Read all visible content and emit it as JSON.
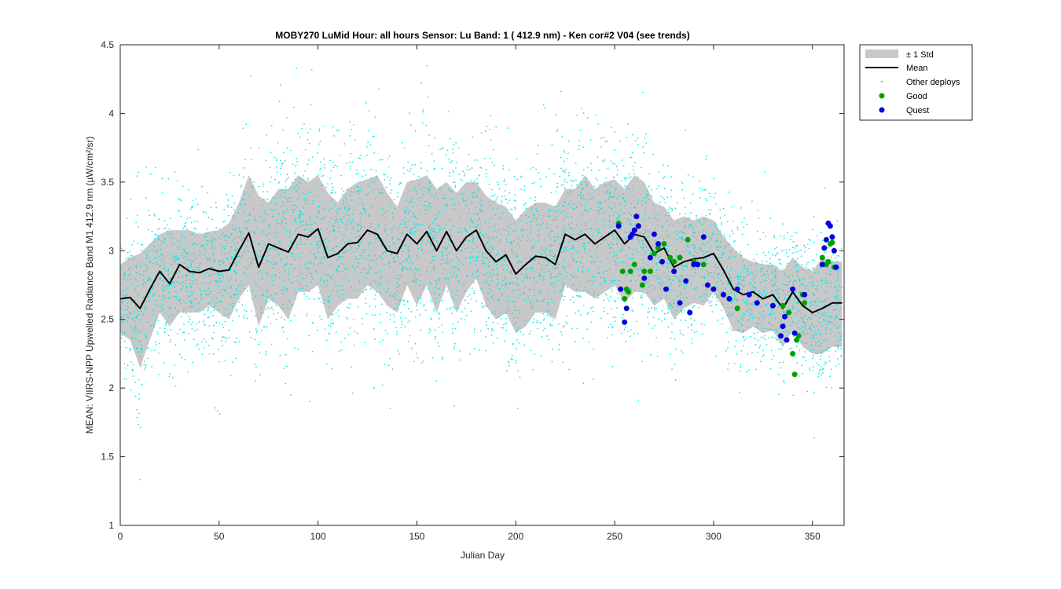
{
  "chart_data": {
    "type": "scatter",
    "title": "MOBY270   LuMid  Hour: all hours  Sensor: Lu Band: 1 ( 412.9 nm)  - Ken cor#2 V04 (see trends)",
    "xlabel": "Julian Day",
    "ylabel": "MEAN: VIIRS-NPP Upwelled Radiance Band M1 412.9 nm (µW/cm²/sr)",
    "xlim": [
      0,
      366
    ],
    "ylim": [
      1,
      4.5
    ],
    "xticks": [
      0,
      50,
      100,
      150,
      200,
      250,
      300,
      350
    ],
    "yticks": [
      1,
      1.5,
      2,
      2.5,
      3,
      3.5,
      4,
      4.5
    ],
    "xtick_labels": [
      "0",
      "50",
      "100",
      "150",
      "200",
      "250",
      "300",
      "350"
    ],
    "ytick_labels": [
      "1",
      "1.5",
      "2",
      "2.5",
      "3",
      "3.5",
      "4",
      "4.5"
    ],
    "grid": false,
    "legend_position": "outside top-right",
    "legend": [
      {
        "label": "± 1 Std",
        "kind": "band",
        "color": "#c8c8c8"
      },
      {
        "label": "Mean",
        "kind": "line",
        "color": "#000000"
      },
      {
        "label": "Other deploys",
        "kind": "dots",
        "color": "#00e5e5"
      },
      {
        "label": "Good",
        "kind": "marker",
        "color": "#00a000"
      },
      {
        "label": "Quest",
        "kind": "marker",
        "color": "#0000e0"
      }
    ],
    "series": [
      {
        "name": "Mean",
        "x": [
          0,
          5,
          10,
          15,
          20,
          25,
          30,
          35,
          40,
          45,
          50,
          55,
          60,
          65,
          70,
          75,
          80,
          85,
          90,
          95,
          100,
          105,
          110,
          115,
          120,
          125,
          130,
          135,
          140,
          145,
          150,
          155,
          160,
          165,
          170,
          175,
          180,
          185,
          190,
          195,
          200,
          205,
          210,
          215,
          220,
          225,
          230,
          235,
          240,
          245,
          250,
          255,
          260,
          265,
          270,
          275,
          280,
          285,
          290,
          295,
          300,
          305,
          310,
          315,
          320,
          325,
          330,
          335,
          340,
          345,
          350,
          355,
          360,
          365
        ],
        "y": [
          2.65,
          2.66,
          2.58,
          2.72,
          2.85,
          2.76,
          2.9,
          2.85,
          2.84,
          2.87,
          2.85,
          2.86,
          3.0,
          3.13,
          2.88,
          3.05,
          3.02,
          2.99,
          3.12,
          3.1,
          3.16,
          2.95,
          2.98,
          3.05,
          3.06,
          3.15,
          3.12,
          3.0,
          2.98,
          3.12,
          3.05,
          3.14,
          3.0,
          3.14,
          3.0,
          3.1,
          3.15,
          3.0,
          2.92,
          2.97,
          2.83,
          2.9,
          2.96,
          2.95,
          2.9,
          3.12,
          3.08,
          3.12,
          3.05,
          3.1,
          3.15,
          3.05,
          3.12,
          3.1,
          2.98,
          3.02,
          2.88,
          2.92,
          2.94,
          2.95,
          2.98,
          2.86,
          2.72,
          2.68,
          2.7,
          2.65,
          2.68,
          2.58,
          2.7,
          2.6,
          2.55,
          2.58,
          2.62,
          2.62
        ]
      },
      {
        "name": "± 1 Std",
        "x": [
          0,
          5,
          10,
          15,
          20,
          25,
          30,
          35,
          40,
          45,
          50,
          55,
          60,
          65,
          70,
          75,
          80,
          85,
          90,
          95,
          100,
          105,
          110,
          115,
          120,
          125,
          130,
          135,
          140,
          145,
          150,
          155,
          160,
          165,
          170,
          175,
          180,
          185,
          190,
          195,
          200,
          205,
          210,
          215,
          220,
          225,
          230,
          235,
          240,
          245,
          250,
          255,
          260,
          265,
          270,
          275,
          280,
          285,
          290,
          295,
          300,
          305,
          310,
          315,
          320,
          325,
          330,
          335,
          340,
          345,
          350,
          355,
          360,
          365
        ],
        "upper": [
          2.9,
          2.95,
          2.98,
          3.05,
          3.12,
          3.15,
          3.15,
          3.15,
          3.12,
          3.14,
          3.15,
          3.2,
          3.35,
          3.55,
          3.4,
          3.35,
          3.45,
          3.45,
          3.55,
          3.5,
          3.55,
          3.42,
          3.35,
          3.45,
          3.5,
          3.52,
          3.55,
          3.42,
          3.32,
          3.5,
          3.52,
          3.55,
          3.45,
          3.5,
          3.42,
          3.5,
          3.5,
          3.4,
          3.35,
          3.32,
          3.22,
          3.3,
          3.35,
          3.35,
          3.32,
          3.45,
          3.45,
          3.55,
          3.45,
          3.5,
          3.52,
          3.45,
          3.55,
          3.5,
          3.35,
          3.32,
          3.22,
          3.25,
          3.22,
          3.25,
          3.22,
          3.1,
          3.02,
          2.95,
          2.92,
          2.9,
          2.9,
          2.85,
          2.95,
          2.88,
          2.85,
          2.95,
          2.92,
          2.92
        ],
        "lower": [
          2.4,
          2.35,
          2.15,
          2.35,
          2.55,
          2.45,
          2.55,
          2.55,
          2.55,
          2.6,
          2.55,
          2.5,
          2.65,
          2.75,
          2.45,
          2.65,
          2.6,
          2.5,
          2.7,
          2.7,
          2.75,
          2.5,
          2.6,
          2.65,
          2.65,
          2.75,
          2.7,
          2.6,
          2.55,
          2.75,
          2.6,
          2.75,
          2.55,
          2.75,
          2.55,
          2.7,
          2.8,
          2.6,
          2.5,
          2.55,
          2.4,
          2.45,
          2.55,
          2.55,
          2.5,
          2.75,
          2.7,
          2.7,
          2.65,
          2.7,
          2.75,
          2.62,
          2.7,
          2.7,
          2.6,
          2.65,
          2.5,
          2.58,
          2.62,
          2.6,
          2.7,
          2.58,
          2.42,
          2.4,
          2.45,
          2.4,
          2.42,
          2.3,
          2.42,
          2.3,
          2.25,
          2.25,
          2.3,
          2.3
        ]
      },
      {
        "name": "Good",
        "x": [
          252,
          254,
          255,
          256,
          257,
          258,
          260,
          262,
          264,
          265,
          268,
          270,
          272,
          275,
          278,
          280,
          283,
          287,
          290,
          295,
          312,
          335,
          338,
          340,
          341,
          342,
          343,
          345,
          346,
          355,
          356,
          357,
          358,
          359,
          360,
          361
        ],
        "y": [
          3.2,
          2.85,
          2.65,
          2.72,
          2.7,
          2.85,
          2.9,
          3.18,
          2.75,
          2.85,
          2.85,
          2.98,
          3.02,
          3.05,
          2.95,
          2.92,
          2.95,
          3.08,
          2.92,
          2.9,
          2.58,
          2.6,
          2.55,
          2.25,
          2.1,
          2.35,
          2.38,
          2.68,
          2.62,
          2.95,
          3.02,
          2.9,
          2.92,
          3.05,
          3.06,
          2.88
        ]
      },
      {
        "name": "Quest",
        "x": [
          252,
          253,
          255,
          256,
          258,
          259,
          260,
          261,
          262,
          265,
          268,
          270,
          272,
          274,
          276,
          280,
          283,
          286,
          288,
          290,
          292,
          295,
          297,
          300,
          305,
          308,
          312,
          318,
          322,
          330,
          334,
          335,
          336,
          337,
          340,
          341,
          346,
          355,
          356,
          357,
          358,
          359,
          360,
          361,
          362
        ],
        "y": [
          3.18,
          2.72,
          2.48,
          2.58,
          3.1,
          3.12,
          3.15,
          3.25,
          3.18,
          2.8,
          2.95,
          3.12,
          3.05,
          2.92,
          2.72,
          2.85,
          2.62,
          2.78,
          2.55,
          2.9,
          2.9,
          3.1,
          2.75,
          2.72,
          2.68,
          2.65,
          2.72,
          2.68,
          2.62,
          2.6,
          2.38,
          2.45,
          2.52,
          2.35,
          2.72,
          2.4,
          2.68,
          2.9,
          3.02,
          3.08,
          3.2,
          3.18,
          3.1,
          3.0,
          2.88
        ]
      }
    ]
  },
  "colors": {
    "band": "#c8c8c8",
    "mean": "#000000",
    "other": "#00e5e5",
    "good": "#00a000",
    "quest": "#0000e0"
  }
}
